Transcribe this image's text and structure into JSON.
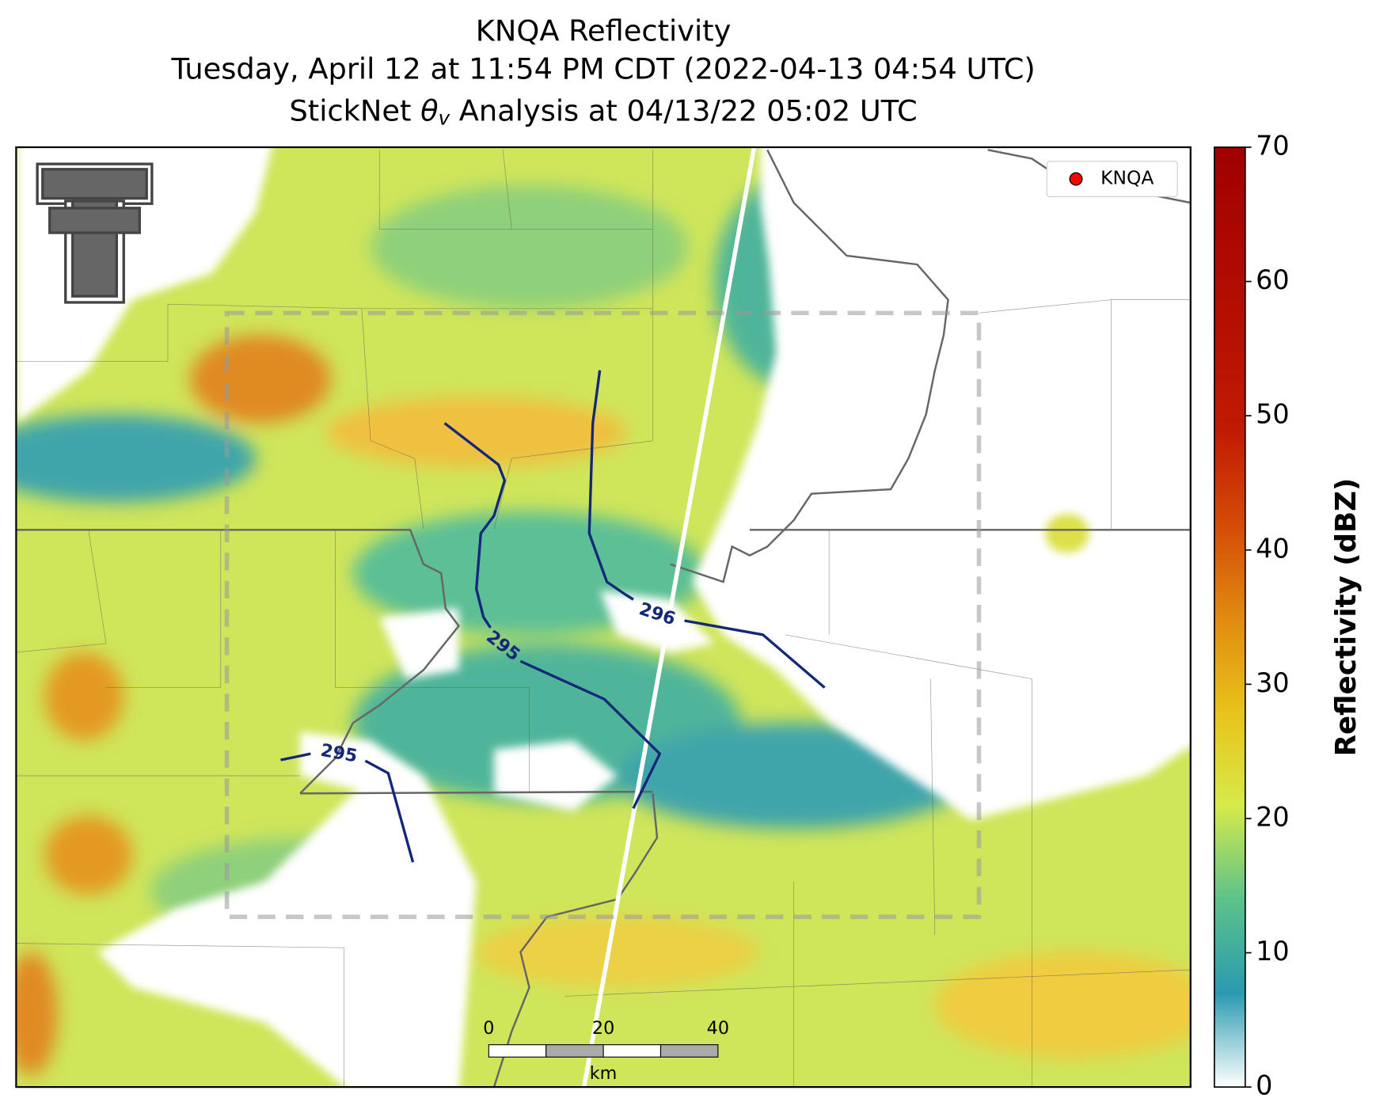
{
  "header": {
    "title": "KNQA Reflectivity",
    "subtitle": "Tuesday, April 12 at 11:54 PM CDT (2022-04-13 04:54 UTC)",
    "analysis": {
      "prefix": "StickNet",
      "symbol": "θ",
      "subscript": "v",
      "suffix": "Analysis at 04/13/22 05:02 UTC"
    }
  },
  "legend": {
    "label": "KNQA"
  },
  "colorbar": {
    "label": "Reflectivity (dBZ)",
    "range": [
      0,
      70
    ],
    "ticks": [
      0,
      10,
      20,
      30,
      40,
      50,
      60,
      70
    ]
  },
  "contours": [
    {
      "label": "295"
    },
    {
      "label": "296"
    },
    {
      "label": "295"
    }
  ],
  "scale_bar": {
    "labels": [
      "0",
      "20",
      "40"
    ],
    "unit": "km"
  }
}
